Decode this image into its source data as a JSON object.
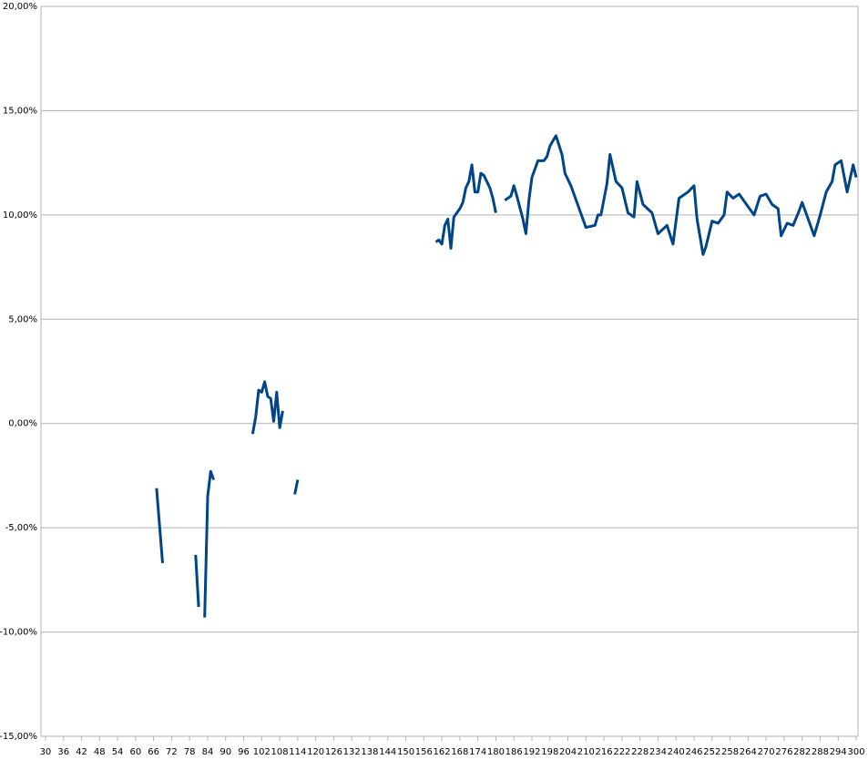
{
  "chart_data": {
    "type": "line",
    "x": [
      67,
      68,
      69,
      74,
      80,
      81,
      82,
      83,
      84,
      85,
      86,
      92,
      99,
      100,
      101,
      102,
      103,
      104,
      105,
      106,
      107,
      108,
      109,
      111,
      113,
      114,
      140,
      160,
      161,
      162,
      163,
      164,
      165,
      166,
      167,
      168,
      169,
      170,
      171,
      172,
      173,
      174,
      175,
      176,
      177,
      178,
      179,
      180,
      182,
      183,
      185,
      186,
      187,
      189,
      190,
      191,
      192,
      194,
      196,
      197,
      198,
      200,
      202,
      203,
      205,
      208,
      210,
      213,
      214,
      215,
      217,
      218,
      220,
      222,
      224,
      226,
      227,
      229,
      232,
      234,
      237,
      239,
      241,
      244,
      246,
      247,
      249,
      250,
      252,
      254,
      256,
      257,
      259,
      261,
      264,
      266,
      268,
      270,
      272,
      274,
      275,
      277,
      279,
      281,
      282,
      284,
      286,
      288,
      290,
      292,
      293,
      295,
      297,
      299,
      300
    ],
    "series": [
      {
        "color": "#004586",
        "values": [
          -3.1,
          -4.9,
          -6.7,
          null,
          -6.3,
          -8.8,
          null,
          -9.3,
          -3.5,
          -2.3,
          -2.7,
          null,
          -0.5,
          0.3,
          1.6,
          1.5,
          2.0,
          1.3,
          1.2,
          0.1,
          1.5,
          -0.2,
          0.6,
          null,
          -3.4,
          -2.7,
          null,
          8.7,
          8.8,
          8.6,
          9.5,
          9.8,
          8.4,
          9.9,
          10.1,
          10.3,
          10.6,
          11.3,
          11.6,
          12.4,
          11.1,
          11.1,
          12.0,
          11.9,
          11.6,
          11.3,
          10.8,
          10.1,
          null,
          10.7,
          10.9,
          11.4,
          10.9,
          9.8,
          9.1,
          10.7,
          11.8,
          12.6,
          12.6,
          12.8,
          13.3,
          13.8,
          12.9,
          12.0,
          11.4,
          10.2,
          9.4,
          9.5,
          10.0,
          10.0,
          11.5,
          12.9,
          11.6,
          11.3,
          10.1,
          9.9,
          11.6,
          10.5,
          10.1,
          9.1,
          9.5,
          8.6,
          10.8,
          11.1,
          11.4,
          9.8,
          8.1,
          8.5,
          9.7,
          9.6,
          10.0,
          11.1,
          10.8,
          11.0,
          10.4,
          10.0,
          10.9,
          11.0,
          10.5,
          10.3,
          9.0,
          9.6,
          9.5,
          10.2,
          10.6,
          9.8,
          9.0,
          10.0,
          11.1,
          11.6,
          12.4,
          12.6,
          11.1,
          12.4,
          11.8
        ]
      }
    ],
    "xlim": [
      28.5,
      300.6
    ],
    "xticks": [
      30,
      36,
      42,
      48,
      54,
      60,
      66,
      72,
      78,
      84,
      90,
      96,
      102,
      108,
      114,
      120,
      126,
      132,
      138,
      144,
      150,
      156,
      162,
      168,
      174,
      180,
      186,
      192,
      198,
      204,
      210,
      216,
      222,
      228,
      234,
      240,
      246,
      252,
      258,
      264,
      270,
      276,
      282,
      288,
      294,
      300
    ],
    "ylim": [
      -15,
      20
    ],
    "yticks": [
      {
        "value": -15,
        "label": "-15,00%"
      },
      {
        "value": -10,
        "label": "-10,00%"
      },
      {
        "value": -5,
        "label": "-5,00%"
      },
      {
        "value": 0,
        "label": "0,00%"
      },
      {
        "value": 5,
        "label": "5,00%"
      },
      {
        "value": 10,
        "label": "10,00%"
      },
      {
        "value": 15,
        "label": "15,00%"
      },
      {
        "value": 20,
        "label": "20,00%"
      }
    ],
    "grid": true
  }
}
